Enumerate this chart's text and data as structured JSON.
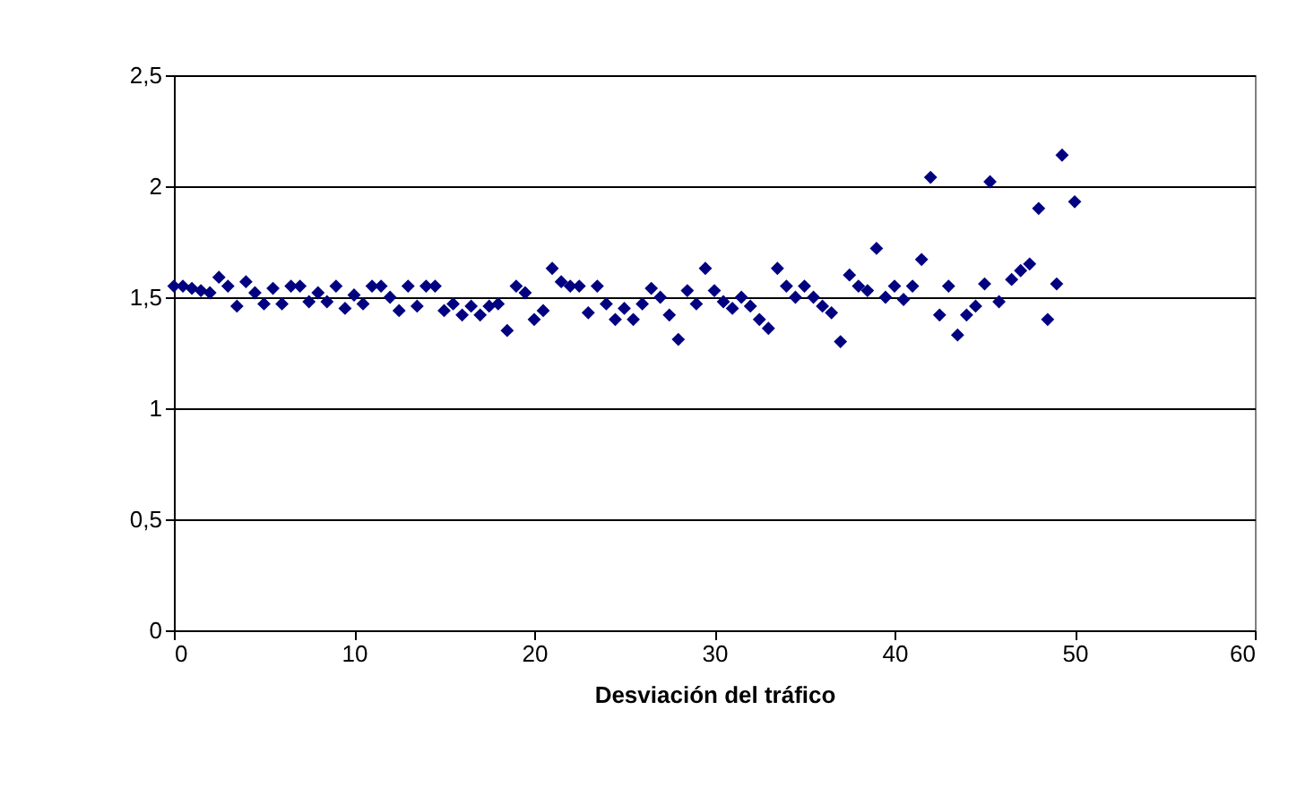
{
  "chart_data": {
    "type": "scatter",
    "xlabel": "Desviación del tráfico",
    "marker": "diamond",
    "grid": "y",
    "xlim": [
      0,
      60
    ],
    "xticks": [
      0,
      10,
      20,
      30,
      40,
      50,
      60
    ],
    "ylim": [
      0,
      2.5
    ],
    "yticks": [
      {
        "value": 0,
        "label": "0"
      },
      {
        "value": 0.5,
        "label": "0,5"
      },
      {
        "value": 1,
        "label": "1"
      },
      {
        "value": 1.5,
        "label": "1,5"
      },
      {
        "value": 2,
        "label": "2"
      },
      {
        "value": 2.5,
        "label": "2,5"
      }
    ],
    "series": [
      {
        "color": "#000080",
        "x": [
          0,
          0.5,
          1,
          1.5,
          2,
          2.5,
          3,
          3.5,
          4,
          4.5,
          5,
          5.5,
          6,
          6.5,
          7,
          7.5,
          8,
          8.5,
          9,
          9.5,
          10,
          10.5,
          11,
          11.5,
          12,
          12.5,
          13,
          13.5,
          14,
          14.5,
          15,
          15.5,
          16,
          16.5,
          17,
          17.5,
          18,
          18.5,
          19,
          19.5,
          20,
          20.5,
          21,
          21.5,
          22,
          22.5,
          23,
          23.5,
          24,
          24.5,
          25,
          25.5,
          26,
          26.5,
          27,
          27.5,
          28,
          28.5,
          29,
          29.5,
          30,
          30.5,
          31,
          31.5,
          32,
          32.5,
          33,
          33.5,
          34,
          34.5,
          35,
          35.5,
          36,
          36.5,
          37,
          37.5,
          38,
          38.5,
          39,
          39.5,
          40,
          40.5,
          41,
          41.5,
          42,
          42.5,
          43,
          43.5,
          44,
          44.5,
          45,
          45.3,
          45.8,
          46.5,
          47,
          47.5,
          48,
          48.5,
          49,
          49.3,
          50
        ],
        "values": [
          1.55,
          1.55,
          1.54,
          1.53,
          1.52,
          1.59,
          1.55,
          1.46,
          1.57,
          1.52,
          1.47,
          1.54,
          1.47,
          1.55,
          1.55,
          1.48,
          1.52,
          1.48,
          1.55,
          1.45,
          1.51,
          1.47,
          1.55,
          1.55,
          1.5,
          1.44,
          1.55,
          1.46,
          1.55,
          1.55,
          1.44,
          1.47,
          1.42,
          1.46,
          1.42,
          1.46,
          1.47,
          1.35,
          1.55,
          1.52,
          1.4,
          1.44,
          1.63,
          1.57,
          1.55,
          1.55,
          1.43,
          1.55,
          1.47,
          1.4,
          1.45,
          1.4,
          1.47,
          1.54,
          1.5,
          1.42,
          1.31,
          1.53,
          1.47,
          1.63,
          1.53,
          1.48,
          1.45,
          1.5,
          1.46,
          1.4,
          1.36,
          1.63,
          1.55,
          1.5,
          1.55,
          1.5,
          1.46,
          1.43,
          1.3,
          1.6,
          1.55,
          1.53,
          1.72,
          1.5,
          1.55,
          1.49,
          1.55,
          1.67,
          2.04,
          1.42,
          1.55,
          1.33,
          1.42,
          1.46,
          1.56,
          2.02,
          1.48,
          1.58,
          1.62,
          1.65,
          1.9,
          1.4,
          1.56,
          2.14,
          1.93
        ]
      }
    ]
  }
}
